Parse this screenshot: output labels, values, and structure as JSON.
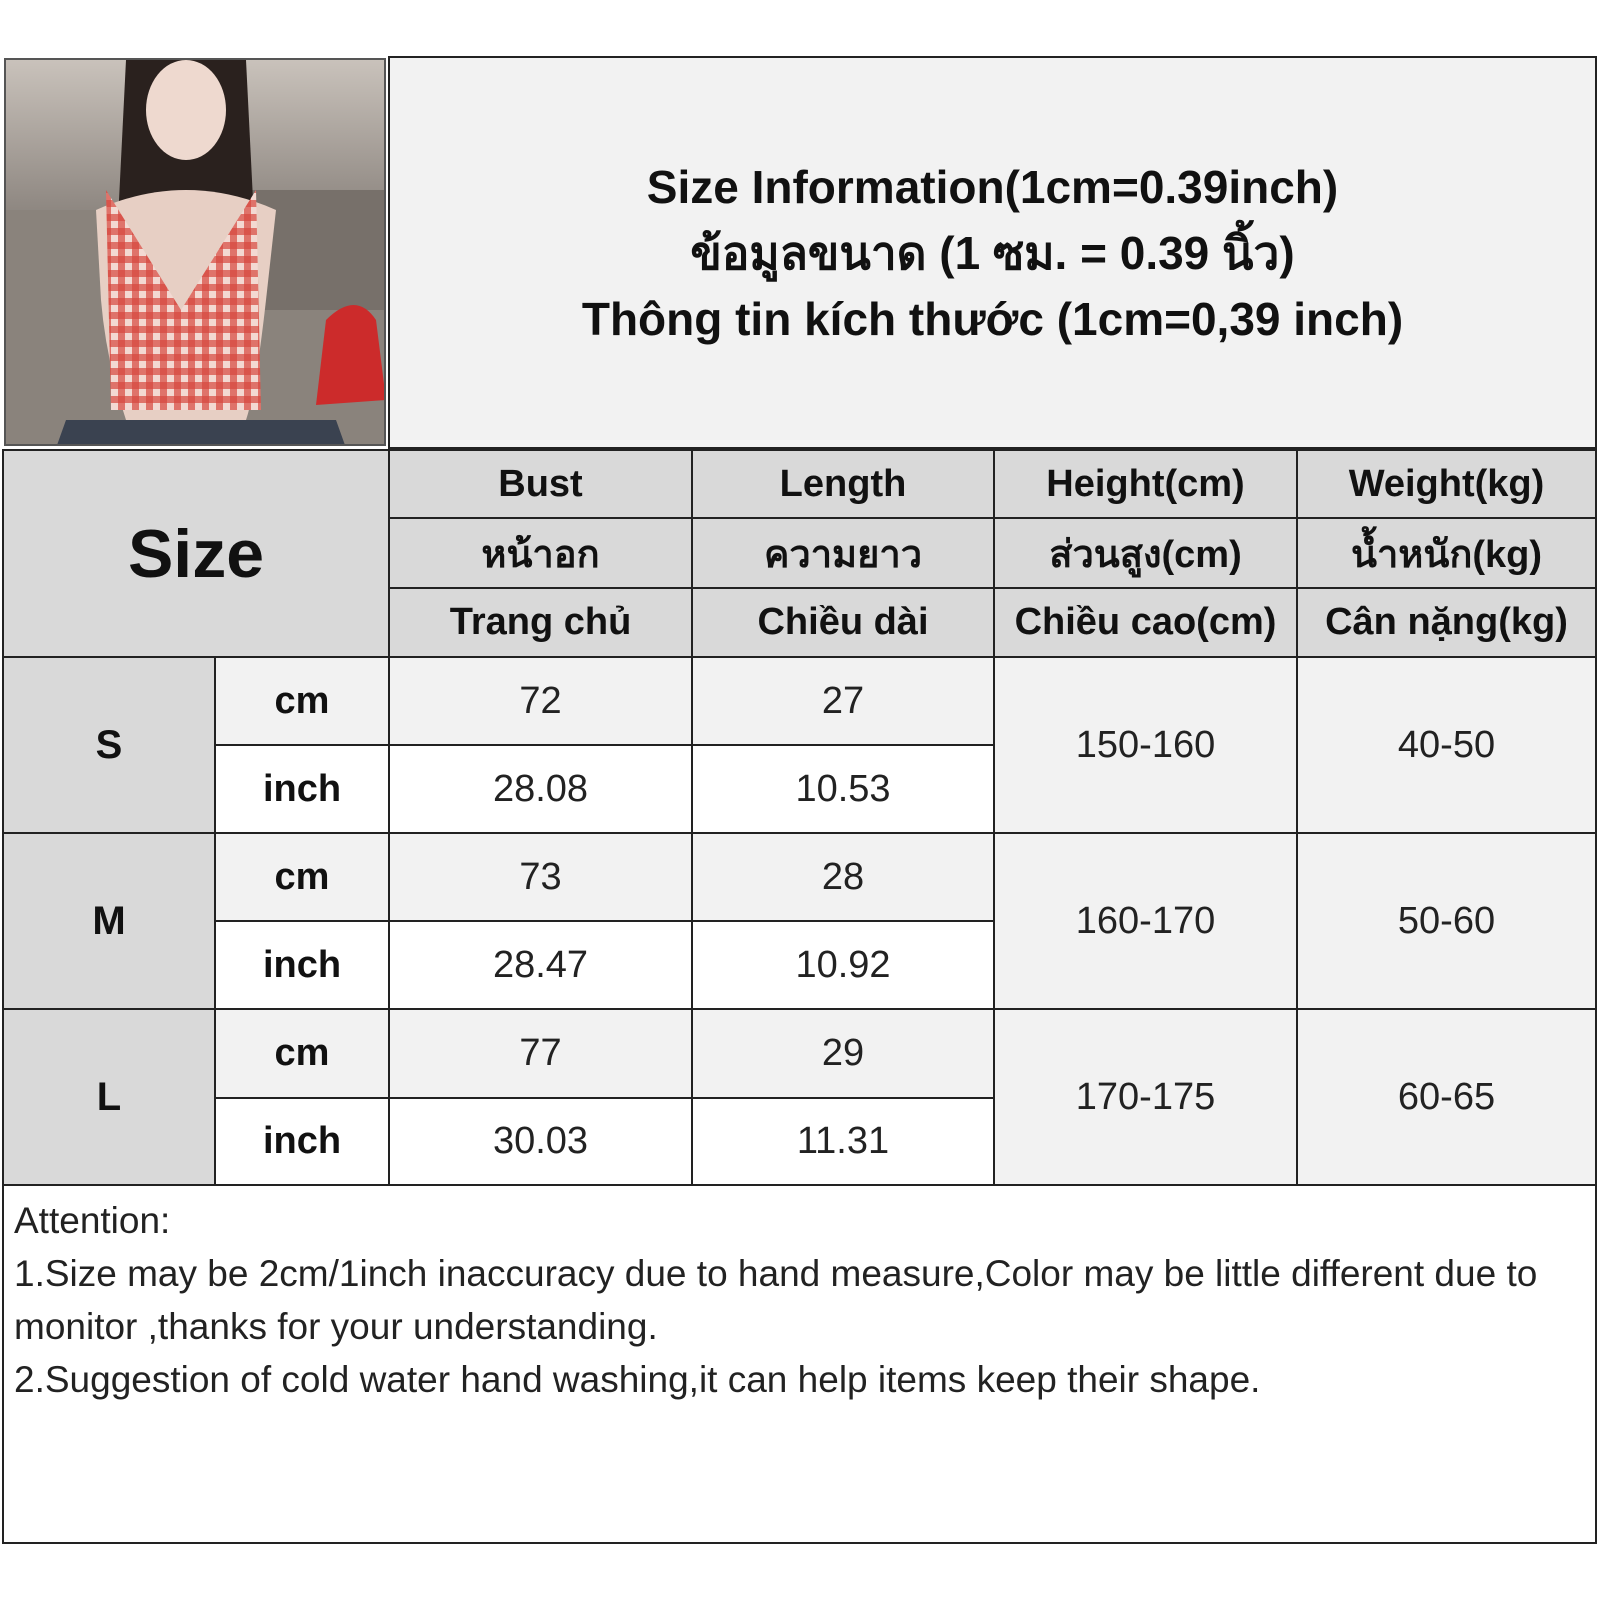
{
  "title": {
    "line1": "Size Information(1cm=0.39inch)",
    "line2": "ข้อมูลขนาด (1 ซม. = 0.39 นิ้ว)",
    "line3": "Thông tin kích thước (1cm=0,39 inch)"
  },
  "photo": {
    "alt": "model wearing red gingham halter top"
  },
  "table": {
    "size_label": "Size",
    "columns": [
      {
        "en": "Bust",
        "th": "หน้าอก",
        "vi": "Trang chủ"
      },
      {
        "en": "Length",
        "th": "ความยาว",
        "vi": "Chiều dài"
      },
      {
        "en": "Height(cm)",
        "th": "ส่วนสูง(cm)",
        "vi": "Chiều cao(cm)"
      },
      {
        "en": "Weight(kg)",
        "th": "น้ำหนัก(kg)",
        "vi": "Cân nặng(kg)"
      }
    ],
    "rows": [
      {
        "size": "S",
        "cm_label": "cm",
        "inch_label": "inch",
        "bust_cm": "72",
        "length_cm": "27",
        "bust_inch": "28.08",
        "length_inch": "10.53",
        "height": "150-160",
        "weight": "40-50"
      },
      {
        "size": "M",
        "cm_label": "cm",
        "inch_label": "inch",
        "bust_cm": "73",
        "length_cm": "28",
        "bust_inch": "28.47",
        "length_inch": "10.92",
        "height": "160-170",
        "weight": "50-60"
      },
      {
        "size": "L",
        "cm_label": "cm",
        "inch_label": "inch",
        "bust_cm": "77",
        "length_cm": "29",
        "bust_inch": "30.03",
        "length_inch": "11.31",
        "height": "170-175",
        "weight": "60-65"
      }
    ]
  },
  "notes": {
    "heading": "Attention:",
    "line1": "1.Size may be 2cm/1inch inaccuracy due to hand measure,Color may be little different due to monitor ,thanks for your understanding.",
    "line2": "2.Suggestion of cold water hand washing,it can help items keep their shape."
  },
  "colors": {
    "header_bg": "#d9d9d9",
    "cell_bg": "#f2f2f2",
    "border": "#222222"
  }
}
